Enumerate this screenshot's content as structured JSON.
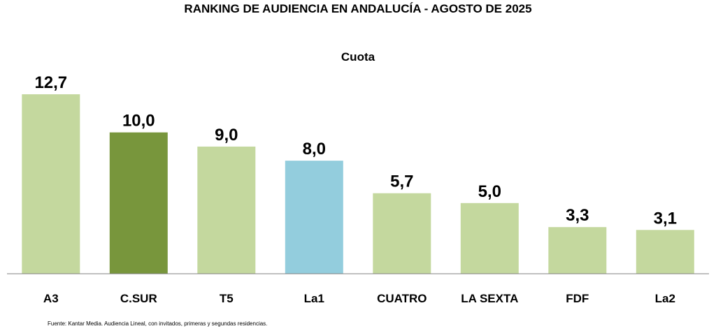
{
  "chart_data": {
    "type": "bar",
    "title": "RANKING DE AUDIENCIA EN ANDALUCÍA - AGOSTO DE 2025",
    "subtitle": "Cuota",
    "categories": [
      "A3",
      "C.SUR",
      "T5",
      "La1",
      "CUATRO",
      "LA SEXTA",
      "FDF",
      "La2"
    ],
    "values": [
      12.7,
      10.0,
      9.0,
      8.0,
      5.7,
      5.0,
      3.3,
      3.1
    ],
    "value_labels": [
      "12,7",
      "10,0",
      "9,0",
      "8,0",
      "5,7",
      "5,0",
      "3,3",
      "3,1"
    ],
    "colors": [
      "#c4d89e",
      "#78963c",
      "#c4d89e",
      "#93cddd",
      "#c4d89e",
      "#c4d89e",
      "#c4d89e",
      "#c4d89e"
    ],
    "ylim": [
      0,
      12.7
    ],
    "xlabel": "",
    "ylabel": ""
  },
  "source": "Fuente: Kantar Media. Audiencia Lineal, con invitados, primeras y segundas residencias."
}
